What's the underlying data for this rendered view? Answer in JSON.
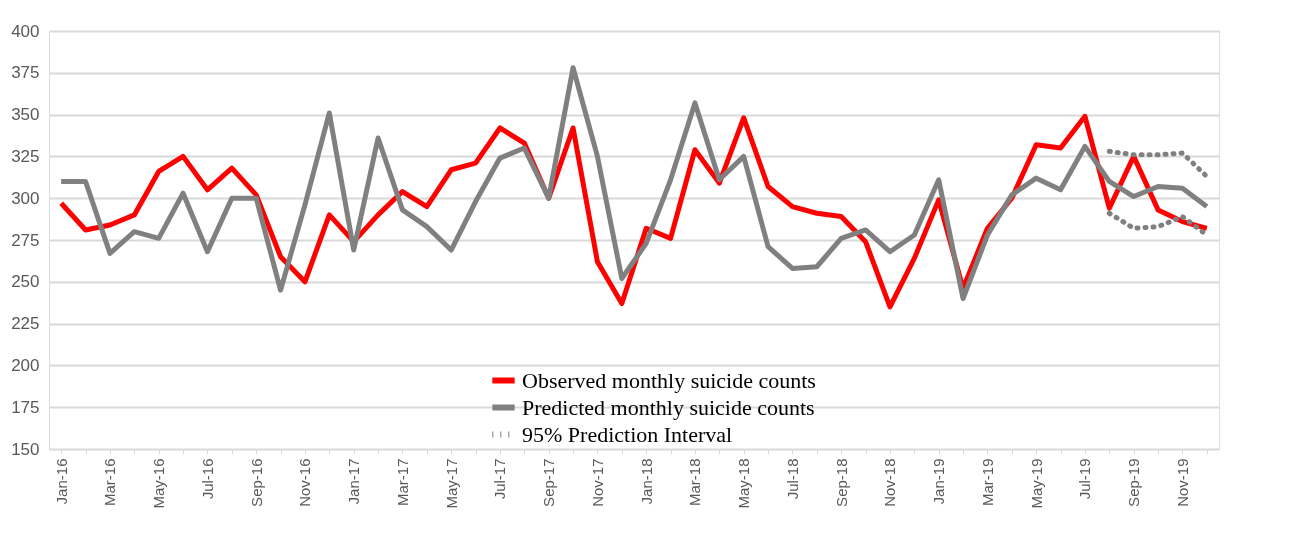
{
  "chart_data": {
    "type": "line",
    "categories": [
      "Jan-16",
      null,
      "Mar-16",
      null,
      "May-16",
      null,
      "Jul-16",
      null,
      "Sep-16",
      null,
      "Nov-16",
      null,
      "Jan-17",
      null,
      "Mar-17",
      null,
      "May-17",
      null,
      "Jul-17",
      null,
      "Sep-17",
      null,
      "Nov-17",
      null,
      "Jan-18",
      null,
      "Mar-18",
      null,
      "May-18",
      null,
      "Jul-18",
      null,
      "Sep-18",
      null,
      "Nov-18",
      null,
      "Jan-19",
      null,
      "Mar-19",
      null,
      "May-19",
      null,
      "Jul-19",
      null,
      "Sep-19",
      null,
      "Nov-19",
      null
    ],
    "series": [
      {
        "name": "Observed monthly suicide counts",
        "color": "#ff0000",
        "line_style": "solid",
        "values": [
          297,
          281,
          284,
          290,
          316,
          325,
          305,
          318,
          302,
          265,
          250,
          290,
          274,
          290,
          304,
          295,
          317,
          321,
          342,
          333,
          300,
          342,
          262,
          237,
          282,
          276,
          329,
          309,
          348,
          307,
          295,
          291,
          289,
          274,
          235,
          264,
          299,
          246,
          282,
          300,
          332,
          330,
          349,
          294,
          325,
          293,
          286,
          282
        ]
      },
      {
        "name": "Predicted monthly suicide counts",
        "color": "#808080",
        "line_style": "solid",
        "values": [
          310,
          310,
          267,
          280,
          276,
          303,
          268,
          300,
          300,
          245,
          296,
          351,
          269,
          336,
          293,
          283,
          269,
          298,
          324,
          330,
          300,
          378,
          325,
          252,
          273,
          311,
          357,
          311,
          325,
          271,
          258,
          259,
          276,
          281,
          268,
          278,
          311,
          240,
          278,
          302,
          312,
          305,
          331,
          310,
          301,
          307,
          306,
          295
        ]
      },
      {
        "name": "95% Prediction Interval",
        "color": "#808080",
        "line_style": "dotted",
        "values": [
          null,
          null,
          null,
          null,
          null,
          null,
          null,
          null,
          null,
          null,
          null,
          null,
          null,
          null,
          null,
          null,
          null,
          null,
          null,
          null,
          null,
          null,
          null,
          null,
          null,
          null,
          null,
          null,
          null,
          null,
          null,
          null,
          null,
          null,
          null,
          null,
          null,
          null,
          null,
          null,
          null,
          null,
          null,
          328,
          326,
          326,
          327,
          313
        ]
      },
      {
        "color": "#808080",
        "line_style": "dotted",
        "values": [
          null,
          null,
          null,
          null,
          null,
          null,
          null,
          null,
          null,
          null,
          null,
          null,
          null,
          null,
          null,
          null,
          null,
          null,
          null,
          null,
          null,
          null,
          null,
          null,
          null,
          null,
          null,
          null,
          null,
          null,
          null,
          null,
          null,
          null,
          null,
          null,
          null,
          null,
          null,
          null,
          null,
          null,
          null,
          291,
          282,
          283,
          289,
          278
        ]
      }
    ],
    "ylim": [
      150,
      400
    ],
    "yticks": [
      150,
      175,
      200,
      225,
      250,
      275,
      300,
      325,
      350,
      375,
      400
    ],
    "grid": "y",
    "legend": "bottom"
  }
}
